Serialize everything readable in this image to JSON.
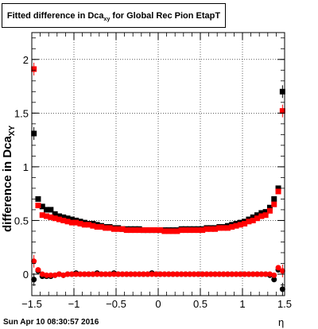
{
  "title": {
    "main": "Fitted difference in Dca",
    "sub": "xy",
    "rest": " for Global Rec Pion EtapT"
  },
  "ylabel": {
    "main": "difference in Dca",
    "sub": "XY"
  },
  "xlabel": "η",
  "timestamp": "Sun Apr 10 08:30:57 2016",
  "chart_data": {
    "type": "scatter",
    "title": "Fitted difference in Dca_xy for Global Rec Pion EtapT",
    "xlabel": "η",
    "ylabel": "difference in Dca_XY",
    "xlim": [
      -1.5,
      1.5
    ],
    "ylim": [
      -0.2,
      2.25
    ],
    "grid": true,
    "xticks": [
      -1.5,
      -1,
      -0.5,
      0,
      0.5,
      1,
      1.5
    ],
    "xtick_labels": [
      "−1.5",
      "−1",
      "−0.5",
      "0",
      "0.5",
      "1",
      "1.5"
    ],
    "yticks": [
      0,
      0.5,
      1,
      1.5,
      2
    ],
    "ytick_labels": [
      "0",
      "0.5",
      "1",
      "1.5",
      "2"
    ],
    "colors": {
      "black": "#000000",
      "red": "#ff0000"
    },
    "series": [
      {
        "marker": "square",
        "color": "#000000",
        "x": [
          -1.475,
          -1.425,
          -1.375,
          -1.325,
          -1.275,
          -1.225,
          -1.175,
          -1.125,
          -1.075,
          -1.025,
          -0.975,
          -0.925,
          -0.875,
          -0.825,
          -0.775,
          -0.725,
          -0.675,
          -0.625,
          -0.575,
          -0.525,
          -0.475,
          -0.425,
          -0.375,
          -0.325,
          -0.275,
          -0.225,
          -0.175,
          -0.125,
          -0.075,
          -0.025,
          0.025,
          0.075,
          0.125,
          0.175,
          0.225,
          0.275,
          0.325,
          0.375,
          0.425,
          0.475,
          0.525,
          0.575,
          0.625,
          0.675,
          0.725,
          0.775,
          0.825,
          0.875,
          0.925,
          0.975,
          1.025,
          1.075,
          1.125,
          1.175,
          1.225,
          1.275,
          1.325,
          1.375,
          1.425,
          1.475
        ],
        "y": [
          1.31,
          0.7,
          0.63,
          0.6,
          0.6,
          0.56,
          0.54,
          0.53,
          0.52,
          0.51,
          0.5,
          0.49,
          0.48,
          0.47,
          0.47,
          0.46,
          0.45,
          0.44,
          0.44,
          0.43,
          0.43,
          0.42,
          0.42,
          0.42,
          0.42,
          0.42,
          0.41,
          0.41,
          0.41,
          0.41,
          0.41,
          0.41,
          0.41,
          0.41,
          0.41,
          0.42,
          0.42,
          0.42,
          0.42,
          0.42,
          0.42,
          0.43,
          0.43,
          0.43,
          0.44,
          0.44,
          0.45,
          0.46,
          0.47,
          0.48,
          0.49,
          0.51,
          0.53,
          0.55,
          0.57,
          0.58,
          0.62,
          0.7,
          0.8,
          1.7
        ]
      },
      {
        "marker": "circle",
        "color": "#000000",
        "x": [
          -1.475,
          -1.425,
          -1.375,
          -1.325,
          -1.275,
          -1.225,
          -1.175,
          -1.125,
          -1.075,
          -1.025,
          -0.975,
          -0.925,
          -0.875,
          -0.825,
          -0.775,
          -0.725,
          -0.675,
          -0.625,
          -0.575,
          -0.525,
          -0.475,
          -0.425,
          -0.375,
          -0.325,
          -0.275,
          -0.225,
          -0.175,
          -0.125,
          -0.075,
          -0.025,
          0.025,
          0.075,
          0.125,
          0.175,
          0.225,
          0.275,
          0.325,
          0.375,
          0.425,
          0.475,
          0.525,
          0.575,
          0.625,
          0.675,
          0.725,
          0.775,
          0.825,
          0.875,
          0.925,
          0.975,
          1.025,
          1.075,
          1.125,
          1.175,
          1.225,
          1.275,
          1.325,
          1.375,
          1.425,
          1.475
        ],
        "y": [
          -0.05,
          0.03,
          -0.02,
          -0.02,
          -0.02,
          -0.01,
          0.0,
          -0.01,
          0.0,
          0.0,
          0.01,
          0.0,
          0.0,
          0.0,
          0.0,
          0.01,
          0.0,
          0.0,
          0.0,
          0.01,
          0.0,
          0.0,
          0.0,
          0.0,
          0.0,
          0.0,
          0.0,
          0.0,
          0.01,
          0.0,
          0.0,
          0.0,
          0.0,
          0.0,
          0.0,
          0.0,
          0.0,
          0.0,
          0.0,
          0.0,
          0.0,
          0.0,
          0.0,
          0.0,
          0.0,
          0.0,
          0.0,
          0.0,
          0.0,
          0.0,
          0.0,
          0.0,
          0.0,
          0.0,
          0.0,
          0.0,
          -0.01,
          -0.05,
          0.04,
          -0.14
        ]
      },
      {
        "marker": "square",
        "color": "#ff0000",
        "x": [
          -1.475,
          -1.425,
          -1.375,
          -1.325,
          -1.275,
          -1.225,
          -1.175,
          -1.125,
          -1.075,
          -1.025,
          -0.975,
          -0.925,
          -0.875,
          -0.825,
          -0.775,
          -0.725,
          -0.675,
          -0.625,
          -0.575,
          -0.525,
          -0.475,
          -0.425,
          -0.375,
          -0.325,
          -0.275,
          -0.225,
          -0.175,
          -0.125,
          -0.075,
          -0.025,
          0.025,
          0.075,
          0.125,
          0.175,
          0.225,
          0.275,
          0.325,
          0.375,
          0.425,
          0.475,
          0.525,
          0.575,
          0.625,
          0.675,
          0.725,
          0.775,
          0.825,
          0.875,
          0.925,
          0.975,
          1.025,
          1.075,
          1.125,
          1.175,
          1.225,
          1.275,
          1.325,
          1.375,
          1.425,
          1.475
        ],
        "y": [
          1.91,
          0.64,
          0.55,
          0.54,
          0.53,
          0.52,
          0.51,
          0.5,
          0.49,
          0.48,
          0.48,
          0.47,
          0.46,
          0.46,
          0.45,
          0.44,
          0.44,
          0.43,
          0.43,
          0.42,
          0.42,
          0.42,
          0.41,
          0.41,
          0.41,
          0.41,
          0.41,
          0.41,
          0.41,
          0.41,
          0.41,
          0.4,
          0.4,
          0.4,
          0.4,
          0.41,
          0.41,
          0.41,
          0.41,
          0.41,
          0.41,
          0.42,
          0.42,
          0.42,
          0.43,
          0.43,
          0.43,
          0.44,
          0.45,
          0.46,
          0.47,
          0.49,
          0.5,
          0.52,
          0.54,
          0.55,
          0.59,
          0.65,
          0.77,
          1.52
        ]
      },
      {
        "marker": "circle",
        "color": "#ff0000",
        "x": [
          -1.475,
          -1.425,
          -1.375,
          -1.325,
          -1.275,
          -1.225,
          -1.175,
          -1.125,
          -1.075,
          -1.025,
          -0.975,
          -0.925,
          -0.875,
          -0.825,
          -0.775,
          -0.725,
          -0.675,
          -0.625,
          -0.575,
          -0.525,
          -0.475,
          -0.425,
          -0.375,
          -0.325,
          -0.275,
          -0.225,
          -0.175,
          -0.125,
          -0.075,
          -0.025,
          0.025,
          0.075,
          0.125,
          0.175,
          0.225,
          0.275,
          0.325,
          0.375,
          0.425,
          0.475,
          0.525,
          0.575,
          0.625,
          0.675,
          0.725,
          0.775,
          0.825,
          0.875,
          0.925,
          0.975,
          1.025,
          1.075,
          1.125,
          1.175,
          1.225,
          1.275,
          1.325,
          1.375,
          1.425,
          1.475
        ],
        "y": [
          0.12,
          0.04,
          0.0,
          -0.01,
          -0.01,
          -0.01,
          0.0,
          -0.01,
          0.0,
          0.0,
          0.0,
          0.0,
          0.0,
          0.0,
          0.0,
          0.0,
          0.0,
          0.0,
          0.0,
          0.0,
          0.0,
          0.0,
          0.0,
          0.0,
          0.0,
          0.0,
          0.0,
          0.0,
          0.0,
          0.0,
          0.0,
          0.0,
          0.0,
          0.0,
          0.0,
          0.0,
          0.0,
          0.0,
          0.0,
          0.0,
          0.0,
          0.0,
          0.0,
          0.0,
          0.0,
          0.0,
          0.0,
          0.0,
          0.0,
          0.0,
          0.0,
          0.0,
          0.0,
          0.0,
          0.0,
          0.0,
          0.0,
          -0.01,
          0.06,
          0.03
        ]
      }
    ]
  }
}
